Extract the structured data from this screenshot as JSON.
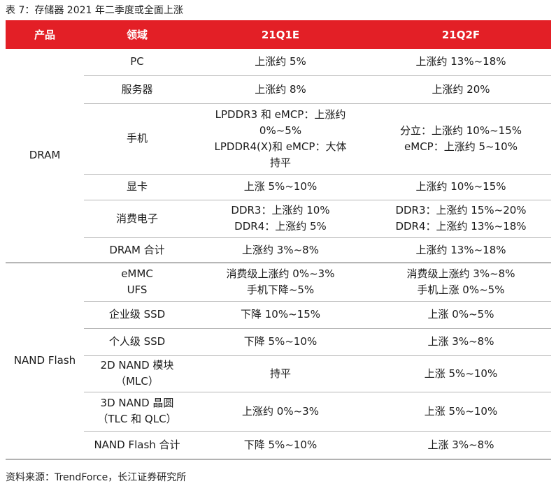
{
  "caption": "表 7：存储器 2021 年二季度或全面上涨",
  "headers": [
    "产品",
    "领域",
    "21Q1E",
    "21Q2F"
  ],
  "groups": [
    {
      "name": "DRAM",
      "rows": [
        {
          "field": [
            "PC"
          ],
          "q1": [
            "上涨约 5%"
          ],
          "q2": [
            "上涨约 13%~18%"
          ],
          "h": 38
        },
        {
          "field": [
            "服务器"
          ],
          "q1": [
            "上涨约 8%"
          ],
          "q2": [
            "上涨约 20%"
          ],
          "h": 40
        },
        {
          "field": [
            "手机"
          ],
          "q1": [
            "LPDDR3 和 eMCP：上涨约",
            "0%~5%",
            "LPDDR4(X)和 eMCP：大体",
            "持平"
          ],
          "q2": [
            "分立：上涨约 10%~15%",
            "eMCP：上涨约 5~10%"
          ],
          "h": 101
        },
        {
          "field": [
            "显卡"
          ],
          "q1": [
            "上涨 5%~10%"
          ],
          "q2": [
            "上涨约 10%~15%"
          ],
          "h": 37
        },
        {
          "field": [
            "消费电子"
          ],
          "q1": [
            "DDR3：上涨约 10%",
            "DDR4：上涨约 5%"
          ],
          "q2": [
            "DDR3：上涨约 15%~20%",
            "DDR4：上涨约 13%~18%"
          ],
          "h": 54
        },
        {
          "field": [
            "DRAM 合计"
          ],
          "q1": [
            "上涨约 3%~8%"
          ],
          "q2": [
            "上涨约 13%~18%"
          ],
          "h": 36
        }
      ]
    },
    {
      "name": "NAND Flash",
      "rows": [
        {
          "field": [
            "eMMC",
            "UFS"
          ],
          "q1": [
            "消费级上涨约 0%~3%",
            "手机下降~5%"
          ],
          "q2": [
            "消费级上涨约 3%~8%",
            "手机上涨 0%~5%"
          ],
          "h": 55
        },
        {
          "field": [
            "企业级 SSD"
          ],
          "q1": [
            "下降 10%~15%"
          ],
          "q2": [
            "上涨 0%~5%"
          ],
          "h": 39
        },
        {
          "field": [
            "个人级 SSD"
          ],
          "q1": [
            "下降 5%~10%"
          ],
          "q2": [
            "上涨 3%~8%"
          ],
          "h": 39
        },
        {
          "field": [
            "2D NAND 模块",
            "（MLC）"
          ],
          "q1": [
            "持平"
          ],
          "q2": [
            "上涨 5%~10%"
          ],
          "h": 52
        },
        {
          "field": [
            "3D NAND 晶圆",
            "（TLC 和 QLC）"
          ],
          "q1": [
            "上涨约 0%~3%"
          ],
          "q2": [
            "上涨 5%~10%"
          ],
          "h": 56
        },
        {
          "field": [
            "NAND Flash 合计"
          ],
          "q1": [
            "下降 5%~10%"
          ],
          "q2": [
            "上涨 3%~8%"
          ],
          "h": 40
        }
      ]
    }
  ],
  "footer": "资料来源：TrendForce，长江证券研究所"
}
